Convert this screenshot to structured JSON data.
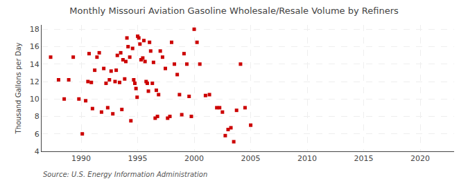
{
  "chart_data": {
    "type": "scatter",
    "title": "Monthly Missouri Aviation Gasoline Wholesale/Resale Volume by Refiners",
    "ylabel": "Thousand Gallons per Day",
    "annotations": [
      "Source: U.S. Energy Information Administration"
    ],
    "color": "#cc0000",
    "marker": "square",
    "grid": true,
    "xlim": [
      1986.5,
      2023
    ],
    "ylim": [
      4,
      18.5
    ],
    "xticks": [
      1990,
      1995,
      2000,
      2005,
      2010,
      2015,
      2020
    ],
    "yticks": [
      4,
      6,
      8,
      10,
      12,
      14,
      16,
      18
    ],
    "x": [
      1987.3,
      1988.0,
      1988.5,
      1988.9,
      1989.3,
      1989.8,
      1990.1,
      1990.4,
      1990.6,
      1990.7,
      1990.9,
      1991.0,
      1991.2,
      1991.4,
      1991.6,
      1991.8,
      1992.0,
      1992.2,
      1992.35,
      1992.5,
      1992.65,
      1992.8,
      1993.0,
      1993.1,
      1993.2,
      1993.4,
      1993.5,
      1993.6,
      1993.7,
      1993.85,
      1993.95,
      1994.05,
      1994.15,
      1994.3,
      1994.4,
      1994.55,
      1994.65,
      1994.75,
      1994.85,
      1994.95,
      1995.0,
      1995.1,
      1995.2,
      1995.3,
      1995.45,
      1995.55,
      1995.65,
      1995.75,
      1995.85,
      1995.95,
      1996.05,
      1996.15,
      1996.3,
      1996.4,
      1996.55,
      1996.65,
      1996.75,
      1996.85,
      1997.0,
      1997.2,
      1997.45,
      1997.65,
      1997.85,
      1998.0,
      1998.25,
      1998.5,
      1998.7,
      1998.9,
      1999.1,
      1999.35,
      1999.55,
      1999.75,
      2000.0,
      2000.25,
      2000.5,
      2001.0,
      2001.35,
      2002.0,
      2002.25,
      2002.5,
      2002.75,
      2003.0,
      2003.25,
      2003.5,
      2003.75,
      2004.1,
      2004.5,
      2005.0
    ],
    "values": [
      14.8,
      12.2,
      10.0,
      12.2,
      14.8,
      10.0,
      6.0,
      9.8,
      12.0,
      15.2,
      11.9,
      8.9,
      13.3,
      14.8,
      15.3,
      8.5,
      13.5,
      11.8,
      9.0,
      12.2,
      13.2,
      8.3,
      12.0,
      13.3,
      15.0,
      11.9,
      15.3,
      8.8,
      14.5,
      12.3,
      14.3,
      17.0,
      16.0,
      14.8,
      7.5,
      15.8,
      12.2,
      11.8,
      11.2,
      10.2,
      17.2,
      17.0,
      16.3,
      14.5,
      14.7,
      16.7,
      14.3,
      12.0,
      11.8,
      10.9,
      16.5,
      15.5,
      11.8,
      14.2,
      7.8,
      11.0,
      8.0,
      10.5,
      15.5,
      14.8,
      13.5,
      7.8,
      8.0,
      16.5,
      14.0,
      12.8,
      10.5,
      8.2,
      15.2,
      14.0,
      10.3,
      8.0,
      18.0,
      16.5,
      14.0,
      10.4,
      10.5,
      9.0,
      9.0,
      8.5,
      5.8,
      6.5,
      6.7,
      5.1,
      8.7,
      14.0,
      9.0,
      7.0
    ]
  }
}
